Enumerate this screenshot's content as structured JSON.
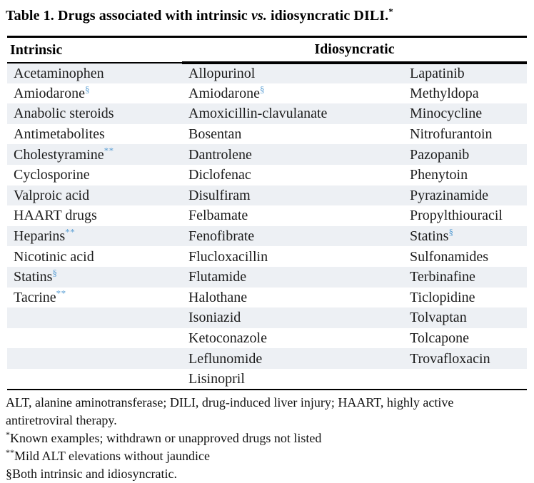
{
  "title": {
    "part1": "Table 1. Drugs associated with intrinsic ",
    "vs": "vs.",
    "part2": " idiosyncratic DILI.",
    "sup": "*"
  },
  "table": {
    "headers": {
      "intrinsic": "Intrinsic",
      "idiosyncratic": "Idiosyncratic"
    },
    "rows": [
      [
        {
          "text": "Acetaminophen"
        },
        {
          "text": "Allopurinol"
        },
        {
          "text": "Lapatinib"
        }
      ],
      [
        {
          "text": "Amiodarone",
          "sup": "§"
        },
        {
          "text": "Amiodarone",
          "sup": "§"
        },
        {
          "text": "Methyldopa"
        }
      ],
      [
        {
          "text": "Anabolic steroids"
        },
        {
          "text": "Amoxicillin-clavulanate"
        },
        {
          "text": "Minocycline"
        }
      ],
      [
        {
          "text": "Antimetabolites"
        },
        {
          "text": "Bosentan"
        },
        {
          "text": "Nitrofurantoin"
        }
      ],
      [
        {
          "text": "Cholestyramine",
          "sup": "**"
        },
        {
          "text": "Dantrolene"
        },
        {
          "text": "Pazopanib"
        }
      ],
      [
        {
          "text": "Cyclosporine"
        },
        {
          "text": "Diclofenac"
        },
        {
          "text": "Phenytoin"
        }
      ],
      [
        {
          "text": "Valproic acid"
        },
        {
          "text": "Disulfiram"
        },
        {
          "text": "Pyrazinamide"
        }
      ],
      [
        {
          "text": "HAART drugs"
        },
        {
          "text": "Felbamate"
        },
        {
          "text": "Propylthiouracil"
        }
      ],
      [
        {
          "text": "Heparins",
          "sup": "**"
        },
        {
          "text": "Fenofibrate"
        },
        {
          "text": "Statins",
          "sup": "§"
        }
      ],
      [
        {
          "text": "Nicotinic acid"
        },
        {
          "text": "Flucloxacillin"
        },
        {
          "text": "Sulfonamides"
        }
      ],
      [
        {
          "text": "Statins",
          "sup": "§"
        },
        {
          "text": "Flutamide"
        },
        {
          "text": "Terbinafine"
        }
      ],
      [
        {
          "text": "Tacrine",
          "sup": "**"
        },
        {
          "text": "Halothane"
        },
        {
          "text": "Ticlopidine"
        }
      ],
      [
        {
          "text": ""
        },
        {
          "text": "Isoniazid"
        },
        {
          "text": "Tolvaptan"
        }
      ],
      [
        {
          "text": ""
        },
        {
          "text": "Ketoconazole"
        },
        {
          "text": "Tolcapone"
        }
      ],
      [
        {
          "text": ""
        },
        {
          "text": "Leflunomide"
        },
        {
          "text": "Trovafloxacin"
        }
      ],
      [
        {
          "text": ""
        },
        {
          "text": "Lisinopril"
        },
        {
          "text": ""
        }
      ]
    ]
  },
  "footnotes": [
    {
      "marker": "",
      "superscript": false,
      "text": "ALT, alanine aminotransferase; DILI, drug-induced liver injury; HAART, highly active antiretroviral therapy."
    },
    {
      "marker": "*",
      "superscript": true,
      "text": "Known examples; withdrawn or unapproved drugs not listed"
    },
    {
      "marker": "**",
      "superscript": true,
      "text": "Mild ALT elevations without jaundice"
    },
    {
      "marker": "§",
      "superscript": false,
      "text": "Both intrinsic and idiosyncratic."
    }
  ],
  "colors": {
    "row_shading": "#edf0f4",
    "marker_blue": "#5b9fd4",
    "rule_black": "#000000"
  }
}
